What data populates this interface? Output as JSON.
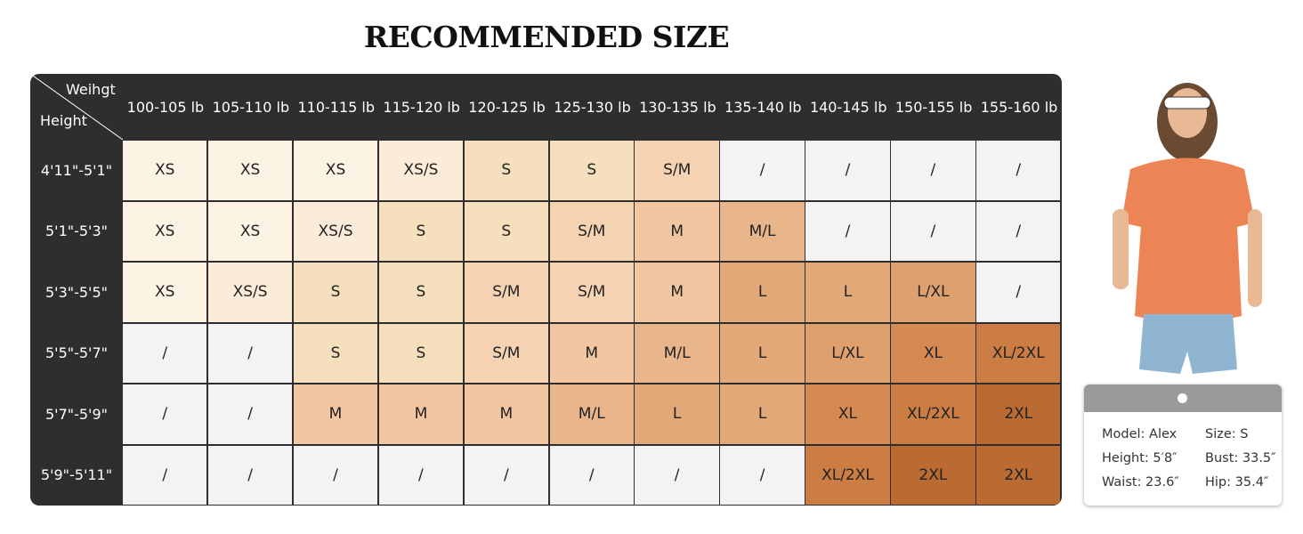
{
  "title": "RECOMMENDED SIZE",
  "table": {
    "corner": {
      "top": "Weihgt",
      "bottom": "Height"
    },
    "columns": [
      "100-105 lb",
      "105-110 lb",
      "110-115 lb",
      "115-120 lb",
      "120-125 lb",
      "125-130 lb",
      "130-135 lb",
      "135-140 lb",
      "140-145 lb",
      "150-155 lb",
      "155-160 lb"
    ],
    "rows": [
      {
        "label": "4'11\"-5'1\"",
        "cells": [
          "XS",
          "XS",
          "XS",
          "XS/S",
          "S",
          "S",
          "S/M",
          "/",
          "/",
          "/",
          "/"
        ]
      },
      {
        "label": "5'1\"-5'3\"",
        "cells": [
          "XS",
          "XS",
          "XS/S",
          "S",
          "S",
          "S/M",
          "M",
          "M/L",
          "/",
          "/",
          "/"
        ]
      },
      {
        "label": "5'3\"-5'5\"",
        "cells": [
          "XS",
          "XS/S",
          "S",
          "S",
          "S/M",
          "S/M",
          "M",
          "L",
          "L",
          "L/XL",
          "/"
        ]
      },
      {
        "label": "5'5\"-5'7\"",
        "cells": [
          "/",
          "/",
          "S",
          "S",
          "S/M",
          "M",
          "M/L",
          "L",
          "L/XL",
          "XL",
          "XL/2XL"
        ]
      },
      {
        "label": "5'7\"-5'9\"",
        "cells": [
          "/",
          "/",
          "M",
          "M",
          "M",
          "M/L",
          "L",
          "L",
          "XL",
          "XL/2XL",
          "2XL"
        ]
      },
      {
        "label": "5'9\"-5'11\"",
        "cells": [
          "/",
          "/",
          "/",
          "/",
          "/",
          "/",
          "/",
          "/",
          "XL/2XL",
          "2XL",
          "2XL"
        ]
      }
    ],
    "cell_colors": {
      "XS": "#fdf3e4",
      "XS/S": "#fbecd9",
      "S": "#f5dfbd",
      "S/M": "#f4d2b2",
      "M": "#f1c6a0",
      "M/L": "#e9b58a",
      "L": "#e3a878",
      "L/XL": "#dea06c",
      "XL": "#d48a52",
      "XL/2XL": "#cb7d44",
      "2XL": "#bb6b32",
      "/": "#f3f3f3"
    }
  },
  "model": {
    "items": [
      "Model: Alex",
      "Size: S",
      "Height: 5′8″",
      "Bust: 33.5″",
      "Waist: 23.6″",
      "Hip: 35.4″"
    ]
  }
}
